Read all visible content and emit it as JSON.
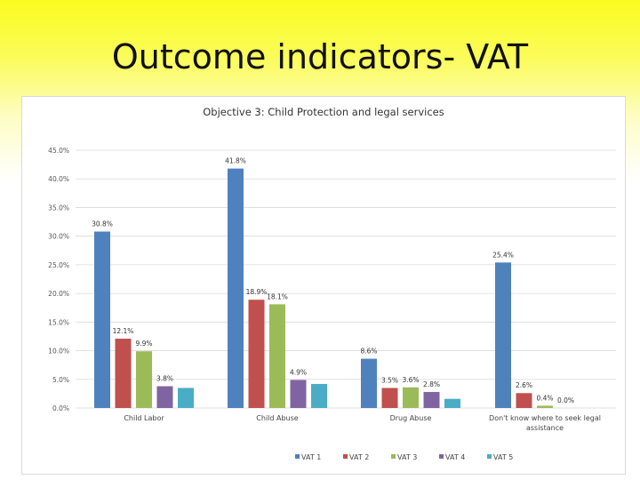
{
  "slide": {
    "title": "Outcome indicators- VAT"
  },
  "chart_data": {
    "type": "bar",
    "title": "Objective 3: Child Protection and legal services",
    "xlabel": "",
    "ylabel": "",
    "ylim": [
      0,
      45
    ],
    "yticks": [
      "0.0%",
      "5.0%",
      "10.0%",
      "15.0%",
      "20.0%",
      "25.0%",
      "30.0%",
      "35.0%",
      "40.0%",
      "45.0%"
    ],
    "grid": true,
    "legend_position": "bottom",
    "categories": [
      "Child Labor",
      "Child Abuse",
      "Drug Abuse",
      "Don't know where to seek legal assistance"
    ],
    "series": [
      {
        "name": "VAT 1",
        "color": "#4f81bd",
        "values": [
          30.8,
          41.8,
          8.6,
          25.4
        ],
        "labels": [
          "30.8%",
          "41.8%",
          "8.6%",
          "25.4%"
        ]
      },
      {
        "name": "VAT 2",
        "color": "#c0504d",
        "values": [
          12.1,
          18.9,
          3.5,
          2.6
        ],
        "labels": [
          "12.1%",
          "18.9%",
          "3.5%",
          "2.6%"
        ]
      },
      {
        "name": "VAT 3",
        "color": "#9bbb59",
        "values": [
          9.9,
          18.1,
          3.6,
          0.4
        ],
        "labels": [
          "9.9%",
          "18.1%",
          "3.6%",
          "0.4%"
        ]
      },
      {
        "name": "VAT 4",
        "color": "#8064a2",
        "values": [
          3.8,
          4.9,
          2.8,
          0.0
        ],
        "labels": [
          "3.8%",
          "4.9%",
          "2.8%",
          "0.0%"
        ]
      },
      {
        "name": "VAT 5",
        "color": "#4bacc6",
        "values": [
          3.5,
          4.2,
          1.6,
          null
        ],
        "labels": [
          null,
          null,
          null,
          null
        ]
      }
    ]
  }
}
